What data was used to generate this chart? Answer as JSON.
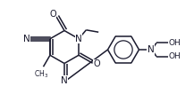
{
  "bg_color": "#ffffff",
  "bond_color": "#1a1a2e",
  "lw": 1.1,
  "figsize": [
    2.17,
    1.06
  ],
  "dpi": 100,
  "xlim": [
    0,
    2.17
  ],
  "ylim": [
    0,
    1.06
  ]
}
